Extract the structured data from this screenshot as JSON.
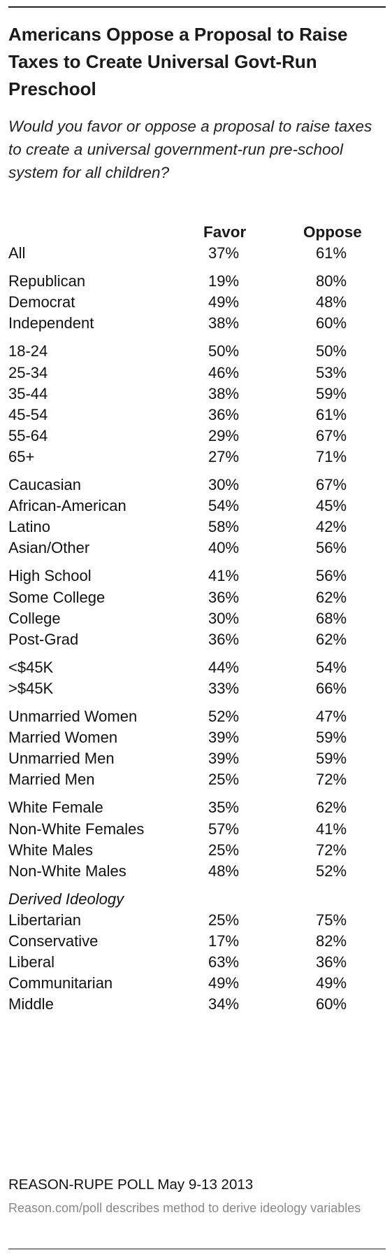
{
  "title": "Americans Oppose a Proposal to Raise Taxes to Create Universal Govt-Run Preschool",
  "subtitle": "Would you favor or oppose a proposal to raise taxes to create a universal government-run pre-school system for all children?",
  "source": "REASON-RUPE POLL May 9-13 2013",
  "note": "Reason.com/poll describes method to derive ideology variables",
  "chart_data": {
    "type": "table",
    "columns": [
      "Favor",
      "Oppose"
    ],
    "groups": [
      {
        "heading": "",
        "rows": [
          {
            "label": "All",
            "favor": "37%",
            "oppose": "61%"
          }
        ]
      },
      {
        "heading": "",
        "rows": [
          {
            "label": "Republican",
            "favor": "19%",
            "oppose": "80%"
          },
          {
            "label": "Democrat",
            "favor": "49%",
            "oppose": "48%"
          },
          {
            "label": "Independent",
            "favor": "38%",
            "oppose": "60%"
          }
        ]
      },
      {
        "heading": "",
        "rows": [
          {
            "label": "18-24",
            "favor": "50%",
            "oppose": "50%"
          },
          {
            "label": "25-34",
            "favor": "46%",
            "oppose": "53%"
          },
          {
            "label": "35-44",
            "favor": "38%",
            "oppose": "59%"
          },
          {
            "label": "45-54",
            "favor": "36%",
            "oppose": "61%"
          },
          {
            "label": "55-64",
            "favor": "29%",
            "oppose": "67%"
          },
          {
            "label": "65+",
            "favor": "27%",
            "oppose": "71%"
          }
        ]
      },
      {
        "heading": "",
        "rows": [
          {
            "label": "Caucasian",
            "favor": "30%",
            "oppose": "67%"
          },
          {
            "label": "African-American",
            "favor": "54%",
            "oppose": "45%"
          },
          {
            "label": "Latino",
            "favor": "58%",
            "oppose": "42%"
          },
          {
            "label": "Asian/Other",
            "favor": "40%",
            "oppose": "56%"
          }
        ]
      },
      {
        "heading": "",
        "rows": [
          {
            "label": "High School",
            "favor": "41%",
            "oppose": "56%"
          },
          {
            "label": "Some College",
            "favor": "36%",
            "oppose": "62%"
          },
          {
            "label": "College",
            "favor": "30%",
            "oppose": "68%"
          },
          {
            "label": "Post-Grad",
            "favor": "36%",
            "oppose": "62%"
          }
        ]
      },
      {
        "heading": "",
        "rows": [
          {
            "label": "<$45K",
            "favor": "44%",
            "oppose": "54%"
          },
          {
            "label": ">$45K",
            "favor": "33%",
            "oppose": "66%"
          }
        ]
      },
      {
        "heading": "",
        "rows": [
          {
            "label": "Unmarried Women",
            "favor": "52%",
            "oppose": "47%"
          },
          {
            "label": "Married Women",
            "favor": "39%",
            "oppose": "59%"
          },
          {
            "label": "Unmarried Men",
            "favor": "39%",
            "oppose": "59%"
          },
          {
            "label": "Married Men",
            "favor": "25%",
            "oppose": "72%"
          }
        ]
      },
      {
        "heading": "",
        "rows": [
          {
            "label": "White Female",
            "favor": "35%",
            "oppose": "62%"
          },
          {
            "label": "Non-White Females",
            "favor": "57%",
            "oppose": "41%"
          },
          {
            "label": "White Males",
            "favor": "25%",
            "oppose": "72%"
          },
          {
            "label": "Non-White Males",
            "favor": "48%",
            "oppose": "52%"
          }
        ]
      },
      {
        "heading": "Derived Ideology",
        "rows": [
          {
            "label": "Libertarian",
            "favor": "25%",
            "oppose": "75%"
          },
          {
            "label": "Conservative",
            "favor": "17%",
            "oppose": "82%"
          },
          {
            "label": "Liberal",
            "favor": "63%",
            "oppose": "36%"
          },
          {
            "label": "Communitarian",
            "favor": "49%",
            "oppose": "49%"
          },
          {
            "label": "Middle",
            "favor": "34%",
            "oppose": "60%"
          }
        ]
      }
    ]
  }
}
